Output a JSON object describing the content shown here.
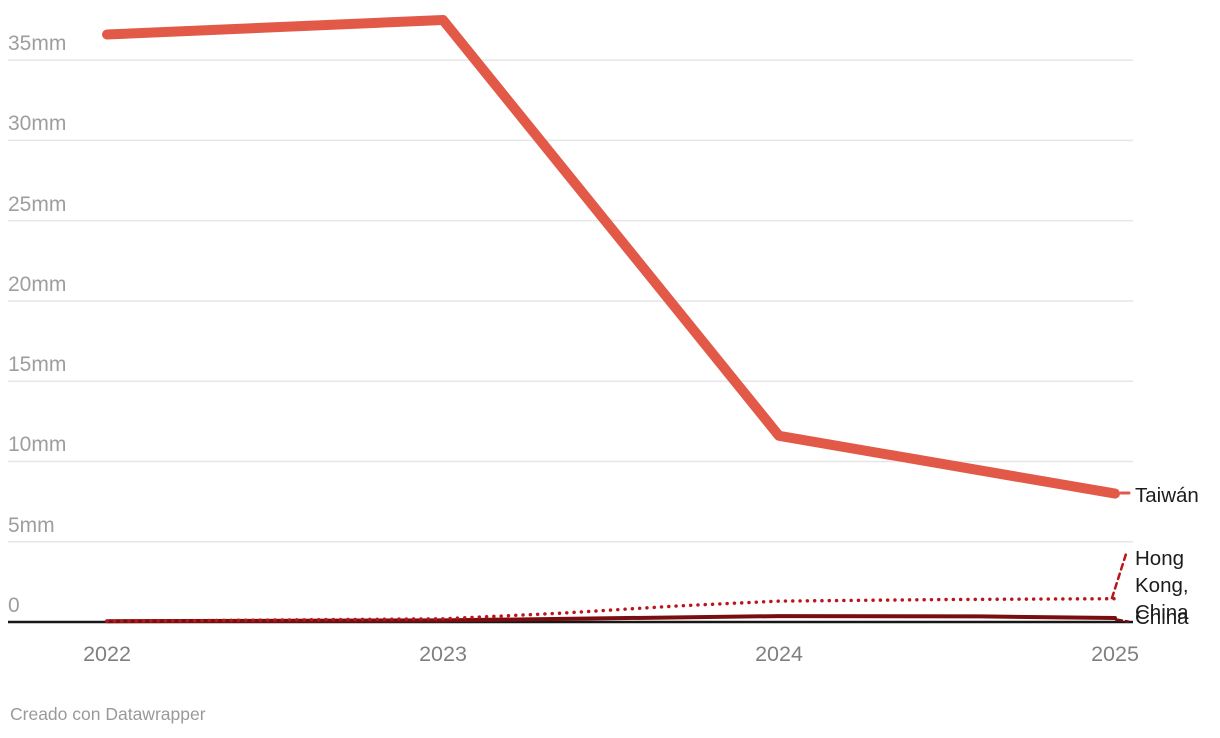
{
  "footer": {
    "attribution": "Creado con Datawrapper"
  },
  "colors": {
    "taiwan_line": "#e25948",
    "hong_kong_line": "#bb141a",
    "china_line": "#7a0d10",
    "axis": "#171717",
    "gridline": "#e6e6e6",
    "y_tick_label": "#9e9e9e",
    "x_tick_label": "#808080",
    "series_label": "#1c1c1c"
  },
  "chart_data": {
    "type": "line",
    "title": "",
    "xlabel": "",
    "ylabel": "",
    "unit": "mm",
    "x_ticks": [
      "2022",
      "2023",
      "2024",
      "2025"
    ],
    "y_ticks": [
      "0",
      "5mm",
      "10mm",
      "15mm",
      "20mm",
      "25mm",
      "30mm",
      "35mm"
    ],
    "y_tick_values": [
      0,
      5,
      10,
      15,
      20,
      25,
      30,
      35
    ],
    "xlim": [
      2022,
      2025
    ],
    "ylim": [
      0,
      37.5
    ],
    "grid": "horizontal",
    "legend_position": "direct-labels-right",
    "series": [
      {
        "name": "taiwan",
        "label": "Taiwán",
        "color": "#e25948",
        "line_style": "solid",
        "line_width": 10,
        "points": [
          [
            2022,
            36.6
          ],
          [
            2023,
            37.5
          ],
          [
            2024,
            11.6
          ],
          [
            2025,
            8.0
          ]
        ]
      },
      {
        "name": "hong-kong-china",
        "label": "Hong Kong, China",
        "color": "#bb141a",
        "line_style": "dotted",
        "line_width": 3.4,
        "points": [
          [
            2022,
            0.05
          ],
          [
            2023,
            0.2
          ],
          [
            2023.35,
            0.55
          ],
          [
            2023.7,
            1.0
          ],
          [
            2024,
            1.3
          ],
          [
            2024.5,
            1.4
          ],
          [
            2025,
            1.45
          ]
        ]
      },
      {
        "name": "china",
        "label": "China",
        "color": "#7a0d10",
        "line_style": "solid",
        "line_width": 4,
        "points": [
          [
            2022,
            0.05
          ],
          [
            2023,
            0.1
          ],
          [
            2024,
            0.37
          ],
          [
            2024.6,
            0.35
          ],
          [
            2025,
            0.25
          ]
        ]
      }
    ]
  }
}
